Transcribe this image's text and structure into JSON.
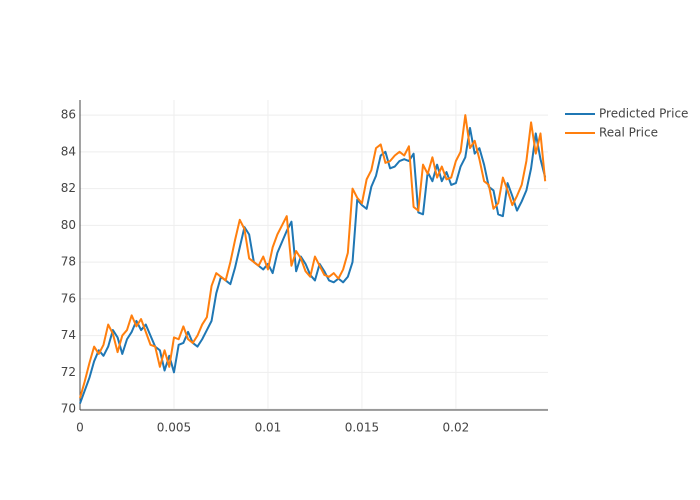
{
  "chart_data": {
    "type": "line",
    "x": [
      0,
      0.00025,
      0.0005,
      0.00075,
      0.001,
      0.00125,
      0.0015,
      0.00175,
      0.002,
      0.00225,
      0.0025,
      0.00275,
      0.003,
      0.00325,
      0.0035,
      0.00375,
      0.004,
      0.00425,
      0.0045,
      0.00475,
      0.005,
      0.00525,
      0.0055,
      0.00575,
      0.006,
      0.00625,
      0.0065,
      0.00675,
      0.007,
      0.00725,
      0.0075,
      0.00775,
      0.008,
      0.00825,
      0.0085,
      0.00875,
      0.009,
      0.00925,
      0.0095,
      0.00975,
      0.01,
      0.01025,
      0.0105,
      0.01075,
      0.011,
      0.01125,
      0.0115,
      0.01175,
      0.012,
      0.01225,
      0.0125,
      0.01275,
      0.013,
      0.01325,
      0.0135,
      0.01375,
      0.014,
      0.01425,
      0.0145,
      0.01475,
      0.015,
      0.01525,
      0.0155,
      0.01575,
      0.016,
      0.01625,
      0.0165,
      0.01675,
      0.017,
      0.01725,
      0.0175,
      0.01775,
      0.018,
      0.01825,
      0.0185,
      0.01875,
      0.019,
      0.01925,
      0.0195,
      0.01975,
      0.02,
      0.02025,
      0.0205,
      0.02075,
      0.021,
      0.02125,
      0.0215,
      0.02175,
      0.022,
      0.02225,
      0.0225,
      0.02275,
      0.023,
      0.02325,
      0.0235,
      0.02375,
      0.024,
      0.02425,
      0.0245,
      0.02475
    ],
    "series": [
      {
        "name": "Predicted Price",
        "color": "#1f77b4",
        "values": [
          70.3,
          71.0,
          71.7,
          72.6,
          73.2,
          72.9,
          73.4,
          74.3,
          73.9,
          73.0,
          73.8,
          74.2,
          74.8,
          74.3,
          74.6,
          74.0,
          73.4,
          73.2,
          72.1,
          72.9,
          72.0,
          73.5,
          73.6,
          74.2,
          73.6,
          73.4,
          73.8,
          74.3,
          74.8,
          76.3,
          77.2,
          77.0,
          76.8,
          77.7,
          78.8,
          79.9,
          79.5,
          78.0,
          77.8,
          77.6,
          77.9,
          77.4,
          78.5,
          79.1,
          79.7,
          80.2,
          77.5,
          78.3,
          77.9,
          77.3,
          77.0,
          77.9,
          77.5,
          77.0,
          76.9,
          77.1,
          76.9,
          77.2,
          78.0,
          81.4,
          81.1,
          80.9,
          82.1,
          82.7,
          83.8,
          84.0,
          83.1,
          83.2,
          83.5,
          83.6,
          83.5,
          83.9,
          80.7,
          80.6,
          82.9,
          82.4,
          83.3,
          82.4,
          82.9,
          82.2,
          82.3,
          83.2,
          83.7,
          85.3,
          83.9,
          84.2,
          83.3,
          82.1,
          81.9,
          80.6,
          80.5,
          82.3,
          81.6,
          80.8,
          81.3,
          81.9,
          83.1,
          85.0,
          83.6,
          82.6
        ]
      },
      {
        "name": "Real Price",
        "color": "#ff7f0e",
        "values": [
          70.6,
          71.5,
          72.5,
          73.4,
          73.0,
          73.5,
          74.6,
          74.1,
          73.1,
          74.0,
          74.3,
          75.1,
          74.5,
          74.9,
          74.2,
          73.5,
          73.4,
          72.3,
          73.2,
          72.3,
          73.9,
          73.8,
          74.5,
          73.8,
          73.6,
          74.0,
          74.6,
          75.0,
          76.7,
          77.4,
          77.2,
          77.0,
          78.0,
          79.2,
          80.3,
          79.8,
          78.2,
          78.0,
          77.8,
          78.3,
          77.6,
          78.8,
          79.5,
          80.0,
          80.5,
          77.8,
          78.6,
          78.2,
          77.5,
          77.2,
          78.3,
          77.8,
          77.3,
          77.2,
          77.4,
          77.1,
          77.6,
          78.5,
          82.0,
          81.5,
          81.2,
          82.5,
          83.0,
          84.2,
          84.4,
          83.4,
          83.5,
          83.8,
          84.0,
          83.8,
          84.3,
          81.0,
          80.8,
          83.3,
          82.8,
          83.7,
          82.6,
          83.2,
          82.5,
          82.6,
          83.5,
          84.0,
          86.0,
          84.2,
          84.6,
          83.6,
          82.4,
          82.2,
          80.9,
          81.2,
          82.6,
          81.9,
          81.1,
          81.6,
          82.2,
          83.5,
          85.6,
          83.9,
          85.0,
          82.4
        ]
      }
    ],
    "xlim": [
      0,
      0.0249
    ],
    "xticks": [
      0,
      0.005,
      0.01,
      0.015,
      0.02
    ],
    "ylim": [
      69.95,
      86.82
    ],
    "yticks": [
      70,
      72,
      74,
      76,
      78,
      80,
      82,
      84,
      86
    ],
    "grid": true,
    "legend": "top-right"
  }
}
